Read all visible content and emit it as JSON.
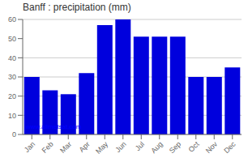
{
  "chart_data": {
    "type": "bar",
    "title": "Banff : precipitation (mm)",
    "categories": [
      "Jan",
      "Feb",
      "Mar",
      "Apr",
      "May",
      "Jun",
      "Jul",
      "Aug",
      "Sep",
      "Oct",
      "Nov",
      "Dec"
    ],
    "values": [
      30,
      23,
      21,
      32,
      57,
      60,
      51,
      51,
      51,
      30,
      30,
      35
    ],
    "color": "#0000DD",
    "ylim": [
      0,
      60
    ],
    "yticks": [
      0,
      10,
      20,
      30,
      40,
      50,
      60
    ],
    "grid": true,
    "annotation": "www.allmetsat.com"
  }
}
